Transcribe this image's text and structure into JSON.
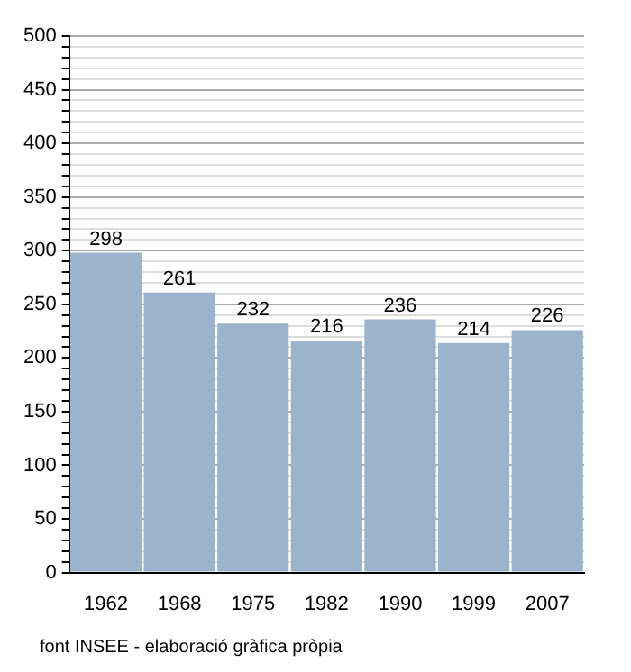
{
  "chart_data": {
    "type": "bar",
    "categories": [
      "1962",
      "1968",
      "1975",
      "1982",
      "1990",
      "1999",
      "2007"
    ],
    "values": [
      298,
      261,
      232,
      216,
      236,
      214,
      226
    ],
    "color": "#9bb3cc",
    "data_labels": true,
    "grid": "y",
    "legend": false,
    "ylim": [
      0,
      500
    ],
    "yticks": [
      0,
      {
        "value": 10,
        "label": null
      },
      {
        "value": 20,
        "label": null
      },
      {
        "value": 30,
        "label": null
      },
      {
        "value": 40,
        "label": null
      },
      50,
      {
        "value": 60,
        "label": null
      },
      {
        "value": 70,
        "label": null
      },
      {
        "value": 80,
        "label": null
      },
      {
        "value": 90,
        "label": null
      },
      100,
      {
        "value": 110,
        "label": null
      },
      {
        "value": 120,
        "label": null
      },
      {
        "value": 130,
        "label": null
      },
      {
        "value": 140,
        "label": null
      },
      150,
      {
        "value": 160,
        "label": null
      },
      {
        "value": 170,
        "label": null
      },
      {
        "value": 180,
        "label": null
      },
      {
        "value": 190,
        "label": null
      },
      200,
      {
        "value": 210,
        "label": null
      },
      {
        "value": 220,
        "label": null
      },
      {
        "value": 230,
        "label": null
      },
      {
        "value": 240,
        "label": null
      },
      250,
      {
        "value": 260,
        "label": null
      },
      {
        "value": 270,
        "label": null
      },
      {
        "value": 280,
        "label": null
      },
      {
        "value": 290,
        "label": null
      },
      300,
      {
        "value": 310,
        "label": null
      },
      {
        "value": 320,
        "label": null
      },
      {
        "value": 330,
        "label": null
      },
      {
        "value": 340,
        "label": null
      },
      350,
      {
        "value": 360,
        "label": null
      },
      {
        "value": 370,
        "label": null
      },
      {
        "value": 380,
        "label": null
      },
      {
        "value": 390,
        "label": null
      },
      400,
      {
        "value": 410,
        "label": null
      },
      {
        "value": 420,
        "label": null
      },
      {
        "value": 430,
        "label": null
      },
      {
        "value": 440,
        "label": null
      },
      450,
      {
        "value": 460,
        "label": null
      },
      {
        "value": 470,
        "label": null
      },
      {
        "value": 480,
        "label": null
      },
      {
        "value": 490,
        "label": null
      },
      500
    ],
    "annotations": [
      "font INSEE - elaboració gràfica pròpia"
    ]
  }
}
